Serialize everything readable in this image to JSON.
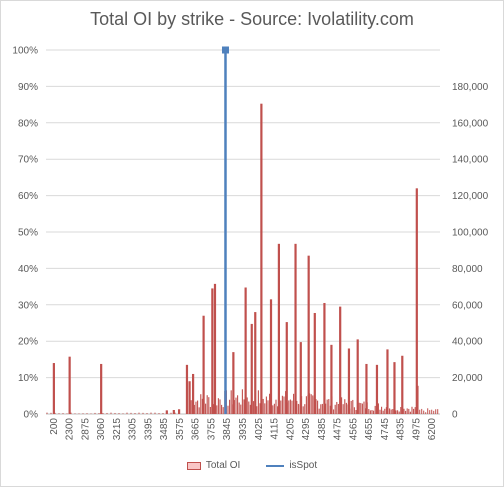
{
  "chart_data": {
    "type": "bar",
    "title": "Total OI by strike - Source: Ivolatility.com",
    "x_tick_labels": [
      "200",
      "2300",
      "2875",
      "3060",
      "3215",
      "3305",
      "3395",
      "3485",
      "3575",
      "3665",
      "3755",
      "3845",
      "3935",
      "4025",
      "4115",
      "4205",
      "4295",
      "4385",
      "4475",
      "4565",
      "4655",
      "4745",
      "4835",
      "4975",
      "6200"
    ],
    "y_left": {
      "ticks": [
        "0%",
        "10%",
        "20%",
        "30%",
        "40%",
        "50%",
        "60%",
        "70%",
        "80%",
        "90%",
        "100%"
      ],
      "range": [
        0,
        1
      ]
    },
    "y_right": {
      "ticks": [
        "0",
        "20,000",
        "40,000",
        "60,000",
        "80,000",
        "100,000",
        "120,000",
        "140,000",
        "160,000",
        "180,000"
      ],
      "range": [
        0,
        200000
      ]
    },
    "series": [
      {
        "name": "Total OI",
        "axis": "right",
        "color": "#c0504d",
        "spikes": [
          {
            "x": 200,
            "value": 28000
          },
          {
            "x": 2300,
            "value": 31500
          },
          {
            "x": 3060,
            "value": 27500
          },
          {
            "x": 3500,
            "value": 2000
          },
          {
            "x": 3540,
            "value": 2200
          },
          {
            "x": 3570,
            "value": 2600
          },
          {
            "x": 3615,
            "value": 27000
          },
          {
            "x": 3630,
            "value": 18000
          },
          {
            "x": 3650,
            "value": 22000
          },
          {
            "x": 3710,
            "value": 54000
          },
          {
            "x": 3760,
            "value": 69000
          },
          {
            "x": 3775,
            "value": 71500
          },
          {
            "x": 3880,
            "value": 34000
          },
          {
            "x": 3950,
            "value": 69500
          },
          {
            "x": 3985,
            "value": 49500
          },
          {
            "x": 4005,
            "value": 56000
          },
          {
            "x": 4040,
            "value": 170500
          },
          {
            "x": 4095,
            "value": 63000
          },
          {
            "x": 4140,
            "value": 93500
          },
          {
            "x": 4185,
            "value": 50500
          },
          {
            "x": 4235,
            "value": 93500
          },
          {
            "x": 4265,
            "value": 39500
          },
          {
            "x": 4310,
            "value": 87000
          },
          {
            "x": 4345,
            "value": 55500
          },
          {
            "x": 4400,
            "value": 61000
          },
          {
            "x": 4440,
            "value": 38000
          },
          {
            "x": 4490,
            "value": 59000
          },
          {
            "x": 4540,
            "value": 36000
          },
          {
            "x": 4590,
            "value": 41000
          },
          {
            "x": 4640,
            "value": 27500
          },
          {
            "x": 4700,
            "value": 27000
          },
          {
            "x": 4760,
            "value": 35500
          },
          {
            "x": 4800,
            "value": 28500
          },
          {
            "x": 4850,
            "value": 32000
          },
          {
            "x": 5010,
            "value": 124000
          },
          {
            "x": 5060,
            "value": 15500
          }
        ]
      },
      {
        "name": "isSpot",
        "axis": "left",
        "color": "#4f81bd",
        "spot_x": 3835,
        "value": 1.0
      }
    ],
    "grid": true,
    "legend_position": "bottom"
  }
}
